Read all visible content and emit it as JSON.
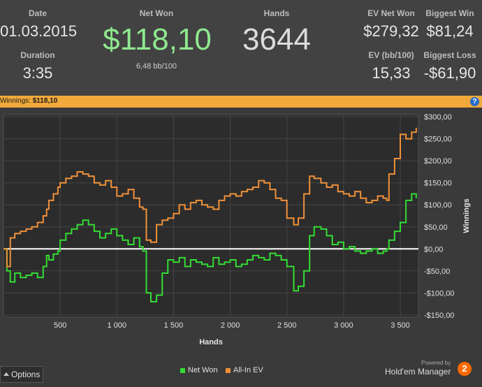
{
  "stats": {
    "date_label": "Date",
    "date_value": "01.03.2015",
    "duration_label": "Duration",
    "duration_value": "3:35",
    "netwon_label": "Net Won",
    "netwon_value": "$118,10",
    "netwon_sub": "6,48 bb/100",
    "hands_label": "Hands",
    "hands_value": "3644",
    "evnet_label": "EV Net Won",
    "evnet_value": "$279,32",
    "evbb_label": "EV (bb/100)",
    "evbb_value": "15,33",
    "bigwin_label": "Biggest Win",
    "bigwin_value": "$81,24",
    "bigloss_label": "Biggest Loss",
    "bigloss_value": "-$61,90"
  },
  "banner": {
    "label": "Winnings:",
    "value": "$118,10",
    "help": "?"
  },
  "footer": {
    "options_label": "Options",
    "powered_by": "Powered by",
    "brand": "Hold'em Manager",
    "brand_badge": "2"
  },
  "colors": {
    "net_won": "#33dd33",
    "all_in_ev": "#f0913a",
    "positive": "#8ee88e"
  },
  "chart_data": {
    "type": "line",
    "xlabel": "Hands",
    "ylabel": "Winnings",
    "xlim": [
      0,
      3660
    ],
    "ylim": [
      -155,
      305
    ],
    "x_ticks": [
      500,
      1000,
      1500,
      2000,
      2500,
      3000,
      3500
    ],
    "x_tick_labels": [
      "500",
      "1 000",
      "1 500",
      "2 000",
      "2 500",
      "3 000",
      "3 500"
    ],
    "y_ticks": [
      300,
      250,
      200,
      150,
      100,
      50,
      0,
      -50,
      -100,
      -150
    ],
    "y_tick_labels": [
      "$300,00",
      "$250,00",
      "$200,00",
      "$150,00",
      "$100,00",
      "$50,00",
      "$0,00",
      "-$50,00",
      "-$100,00",
      "-$150,00"
    ],
    "series": [
      {
        "name": "Net Won",
        "color": "#33dd33",
        "x": [
          0,
          30,
          60,
          100,
          150,
          200,
          250,
          300,
          350,
          380,
          400,
          440,
          480,
          500,
          550,
          600,
          650,
          700,
          750,
          800,
          850,
          900,
          950,
          1000,
          1050,
          1100,
          1150,
          1200,
          1230,
          1260,
          1300,
          1350,
          1400,
          1450,
          1500,
          1550,
          1600,
          1650,
          1700,
          1750,
          1800,
          1850,
          1900,
          1950,
          2000,
          2050,
          2100,
          2150,
          2200,
          2250,
          2300,
          2350,
          2400,
          2450,
          2500,
          2560,
          2600,
          2650,
          2700,
          2740,
          2800,
          2850,
          2900,
          2950,
          3000,
          3050,
          3100,
          3150,
          3200,
          3250,
          3300,
          3350,
          3380,
          3400,
          3450,
          3500,
          3550,
          3600,
          3640
        ],
        "y": [
          0,
          -50,
          -75,
          -55,
          -65,
          -60,
          -55,
          -65,
          -40,
          -15,
          -25,
          -12,
          -5,
          20,
          35,
          45,
          55,
          65,
          55,
          40,
          25,
          35,
          45,
          30,
          20,
          10,
          25,
          5,
          -5,
          -100,
          -120,
          -105,
          -55,
          -25,
          -30,
          -20,
          -40,
          -25,
          -30,
          -35,
          -40,
          -20,
          -35,
          -30,
          -25,
          -40,
          -35,
          -25,
          -15,
          -20,
          -25,
          -10,
          -15,
          -25,
          -40,
          -95,
          -85,
          -50,
          30,
          50,
          45,
          30,
          10,
          15,
          0,
          5,
          -5,
          -10,
          -5,
          0,
          -10,
          -5,
          0,
          20,
          40,
          60,
          110,
          125,
          115
        ],
        "values_note_hidden": ""
      },
      {
        "name": "All-In EV",
        "color": "#f0913a",
        "x": [
          0,
          30,
          60,
          100,
          150,
          200,
          250,
          300,
          350,
          380,
          400,
          440,
          480,
          500,
          550,
          600,
          650,
          700,
          750,
          800,
          850,
          900,
          950,
          1000,
          1050,
          1100,
          1150,
          1200,
          1230,
          1260,
          1300,
          1350,
          1400,
          1450,
          1500,
          1550,
          1600,
          1650,
          1700,
          1750,
          1800,
          1850,
          1900,
          1950,
          2000,
          2050,
          2100,
          2150,
          2200,
          2250,
          2300,
          2350,
          2400,
          2450,
          2500,
          2560,
          2600,
          2650,
          2700,
          2740,
          2800,
          2850,
          2900,
          2950,
          3000,
          3050,
          3100,
          3150,
          3200,
          3250,
          3300,
          3350,
          3380,
          3400,
          3450,
          3500,
          3550,
          3600,
          3640
        ],
        "y": [
          0,
          -40,
          25,
          35,
          40,
          45,
          50,
          60,
          75,
          90,
          110,
          125,
          140,
          150,
          160,
          165,
          175,
          170,
          165,
          150,
          145,
          155,
          140,
          120,
          125,
          135,
          115,
          95,
          90,
          20,
          15,
          55,
          65,
          70,
          80,
          100,
          90,
          105,
          110,
          100,
          95,
          90,
          110,
          120,
          125,
          120,
          130,
          135,
          140,
          155,
          150,
          135,
          115,
          110,
          70,
          55,
          70,
          125,
          165,
          160,
          150,
          140,
          145,
          130,
          125,
          120,
          130,
          115,
          105,
          110,
          120,
          115,
          110,
          170,
          205,
          260,
          250,
          265,
          275
        ]
      }
    ]
  }
}
